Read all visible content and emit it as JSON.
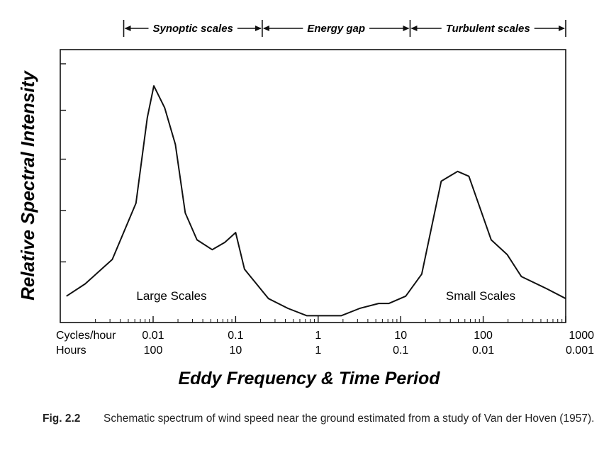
{
  "chart_data": {
    "type": "line",
    "ylabel": "Relative Spectral Intensity",
    "xlabel": "Eddy Frequency & Time Period",
    "x_scale": "log",
    "x_unit_rows": [
      {
        "label": "Cycles/hour",
        "ticks": [
          "0.01",
          "0.1",
          "1",
          "10",
          "100",
          "1000"
        ]
      },
      {
        "label": "Hours",
        "ticks": [
          "100",
          "10",
          "1",
          "0.1",
          "0.01",
          "0.001"
        ]
      }
    ],
    "x_ticks_cycles_per_hour": [
      0.01,
      0.1,
      1,
      10,
      100,
      1000
    ],
    "xlim": [
      0.00089,
      1000
    ],
    "ylim": [
      0,
      10
    ],
    "y_ticks": [
      1.9,
      4.0,
      6.1,
      8.1,
      10
    ],
    "y_tick_labels": false,
    "series": [
      {
        "x": [
          0.00089,
          0.0015,
          0.0032,
          0.0062,
          0.0085,
          0.0102,
          0.0138,
          0.0186,
          0.0245,
          0.034,
          0.052,
          0.074,
          0.1,
          0.128,
          0.25,
          0.43,
          0.73,
          1.9,
          3.2,
          5.4,
          7.2,
          11.5,
          18,
          31,
          49,
          67,
          125,
          195,
          290,
          590,
          1000
        ],
        "y": [
          0.5,
          1.0,
          2.0,
          4.3,
          7.8,
          9.1,
          8.2,
          6.7,
          3.9,
          2.8,
          2.4,
          2.7,
          3.1,
          1.6,
          0.4,
          0.0,
          -0.3,
          -0.3,
          0.0,
          0.2,
          0.2,
          0.5,
          1.4,
          5.2,
          5.6,
          5.4,
          2.8,
          2.2,
          1.3,
          0.8,
          0.4
        ]
      }
    ],
    "annotations": [
      {
        "text": "Large Scales",
        "x": 0.012,
        "y": 0.5
      },
      {
        "text": "Small Scales",
        "x": 70,
        "y": 0.5
      }
    ],
    "regions": [
      {
        "label": "Synoptic scales",
        "from": 0.0044,
        "to": 0.21
      },
      {
        "label": "Energy gap",
        "from": 0.21,
        "to": 13
      },
      {
        "label": "Turbulent scales",
        "from": 13,
        "to": 1000
      }
    ],
    "grid": false,
    "legend": false
  },
  "caption": {
    "label": "Fig. 2.2",
    "text": "Schematic spectrum of wind speed near the ground estimated from a study of Van der Hoven (1957)."
  },
  "colors": {
    "line": "#111111",
    "background": "#ffffff"
  }
}
